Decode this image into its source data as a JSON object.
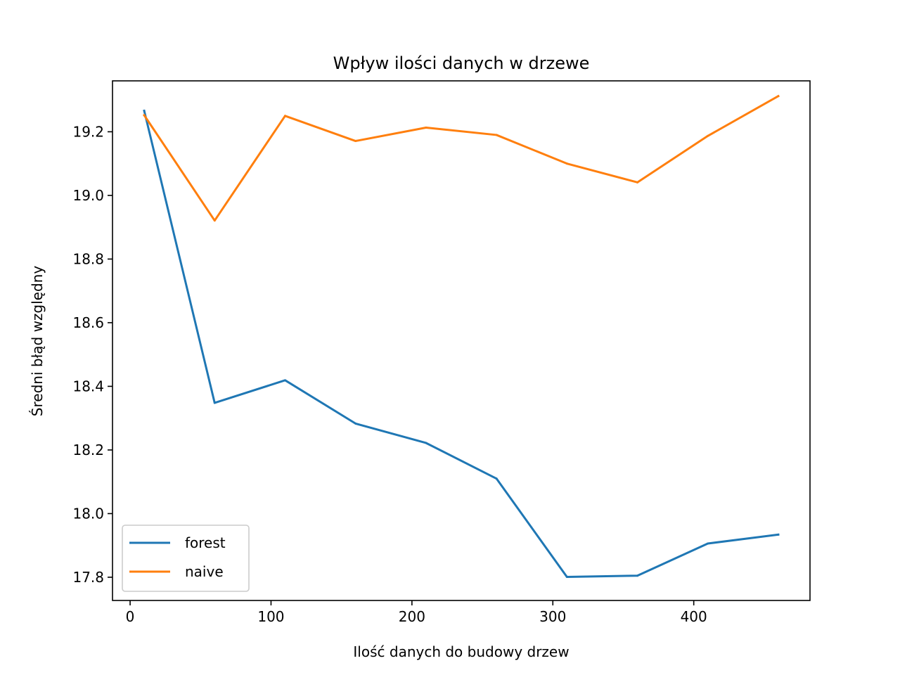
{
  "chart_data": {
    "type": "line",
    "title": "Wpływ ilości danych w drzewe",
    "xlabel": "Ilość danych do budowy drzew",
    "ylabel": "Średni błąd względny",
    "x": [
      10,
      60,
      110,
      160,
      210,
      260,
      310,
      360,
      410,
      460
    ],
    "xlim": [
      -12.5,
      482.5
    ],
    "ylim": [
      17.727,
      19.36
    ],
    "xticks": [
      0,
      100,
      200,
      300,
      400
    ],
    "xtick_labels": [
      "0",
      "100",
      "200",
      "300",
      "400"
    ],
    "yticks": [
      17.8,
      18.0,
      18.2,
      18.4,
      18.6,
      18.8,
      19.0,
      19.2
    ],
    "ytick_labels": [
      "17.8",
      "18.0",
      "18.2",
      "18.4",
      "18.6",
      "18.8",
      "19.0",
      "19.2"
    ],
    "grid": false,
    "legend_position": "lower-left",
    "series": [
      {
        "name": "forest",
        "color": "#1f77b4",
        "values": [
          19.266,
          18.348,
          18.419,
          18.283,
          18.222,
          18.11,
          17.801,
          17.805,
          17.906,
          17.934
        ]
      },
      {
        "name": "naive",
        "color": "#ff7f0e",
        "values": [
          19.252,
          18.921,
          19.25,
          19.171,
          19.213,
          19.19,
          19.1,
          19.041,
          19.187,
          19.312
        ]
      }
    ]
  }
}
